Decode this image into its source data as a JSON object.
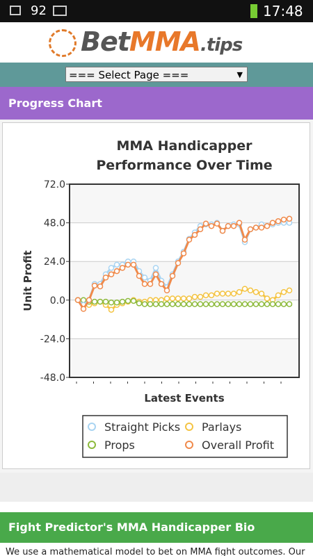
{
  "status_bar": {
    "battery": "92",
    "time": "17:48"
  },
  "logo": {
    "parts": [
      "Bet",
      "MMA",
      ".tips"
    ]
  },
  "page_select": "=== Select Page ===",
  "section_header": "Progress Chart",
  "chart_data": {
    "type": "line",
    "title": "MMA Handicapper Performance Over Time",
    "x_label": "Latest Events",
    "y_label": "Unit Profit",
    "categories": [
      null,
      null,
      null,
      null,
      null,
      null,
      null,
      null,
      null,
      null,
      null,
      null,
      null,
      null,
      null,
      null,
      null,
      null,
      null,
      null,
      null,
      null,
      null,
      null,
      null,
      null,
      null,
      null,
      null,
      null,
      null,
      null,
      null,
      null,
      null,
      null,
      null,
      null,
      null
    ],
    "ylim": [
      -48,
      72
    ],
    "yticks": [
      {
        "value": -48,
        "label": "-48.0"
      },
      {
        "value": -24,
        "label": "-24.0"
      },
      {
        "value": 0,
        "label": "0.0"
      },
      {
        "value": 24,
        "label": "24.0"
      },
      {
        "value": 48,
        "label": "48.0"
      },
      {
        "value": 72,
        "label": "72.0"
      }
    ],
    "grid": true,
    "series": [
      {
        "name": "Straight Picks",
        "color": "#a9d4f2",
        "values": [
          0,
          -3,
          0,
          10,
          10,
          16,
          20,
          22,
          22,
          24,
          24,
          18,
          14,
          12,
          20,
          12,
          8,
          16,
          24,
          30,
          38,
          42,
          46,
          47,
          47,
          48,
          43,
          46,
          47,
          47,
          36,
          44,
          45,
          47,
          46,
          47,
          48,
          48,
          48
        ]
      },
      {
        "name": "Parlays",
        "color": "#f4c443",
        "values": [
          0,
          -2,
          -3,
          -2,
          -1,
          -3,
          -6,
          -3,
          -2,
          -1,
          0,
          -1,
          -1,
          0,
          0,
          0,
          1,
          1,
          1,
          1,
          1,
          2,
          2,
          3,
          3,
          4,
          4,
          4,
          4,
          5,
          7,
          6,
          5,
          4,
          1,
          0,
          3,
          5,
          6
        ]
      },
      {
        "name": "Props",
        "color": "#8dba3c",
        "values": [
          0,
          0,
          -1,
          -1,
          -1,
          -1,
          -1.5,
          -1.5,
          -1,
          -0.5,
          -0.5,
          -2,
          -2.5,
          -2.5,
          -2.5,
          -2.5,
          -2.5,
          -2.5,
          -2.5,
          -2.5,
          -2.5,
          -2.5,
          -2.5,
          -2.5,
          -2.5,
          -2.5,
          -2.5,
          -2.5,
          -2.5,
          -2.5,
          -2.5,
          -2.5,
          -2.5,
          -2.5,
          -2.5,
          -2.5,
          -2.5,
          -2.5,
          -2.5
        ]
      },
      {
        "name": "Overall Profit",
        "color": "#f08a4b",
        "values": [
          0,
          -5.5,
          0,
          9,
          8.5,
          14,
          16,
          18,
          20,
          22,
          22,
          15,
          10,
          10,
          16,
          10,
          6,
          15,
          23,
          29,
          37.5,
          40.5,
          44,
          47.5,
          46,
          47.5,
          43,
          46,
          46,
          48,
          37.5,
          44,
          45,
          45,
          46,
          48,
          49,
          50,
          50.5
        ]
      }
    ]
  },
  "bio_header": "Fight Predictor's MMA Handicapper Bio",
  "bio_text": "We use a mathematical model to bet on MMA fight outcomes. Our"
}
